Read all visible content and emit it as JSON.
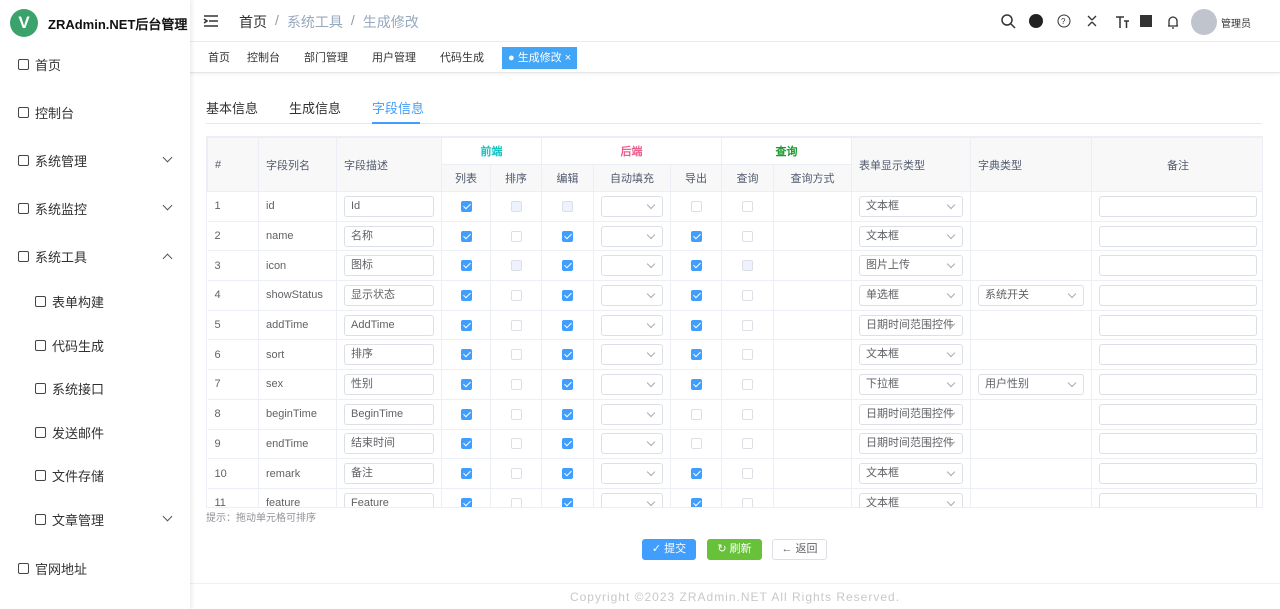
{
  "app": {
    "logo": "V",
    "title": "ZRAdmin.NET后台管理"
  },
  "sidebar": {
    "items": [
      "首页",
      "控制台",
      "系统管理",
      "系统监控",
      "系统工具"
    ],
    "children": [
      "表单构建",
      "代码生成",
      "系统接口",
      "发送邮件",
      "文件存储",
      "文章管理"
    ],
    "bottom": "官网地址"
  },
  "header": {
    "breadcrumb": [
      "首页",
      "系统工具",
      "生成修改"
    ],
    "user": "管理员"
  },
  "tags": {
    "items": [
      "首页",
      "控制台",
      "部门管理",
      "用户管理",
      "代码生成",
      "生成修改"
    ],
    "active": 5
  },
  "tabs": {
    "items": [
      "基本信息",
      "生成信息",
      "字段信息"
    ],
    "active": 2
  },
  "table": {
    "lead_columns": [
      "#",
      "字段列名",
      "字段描述"
    ],
    "groups": [
      {
        "label": "前端",
        "color": "#13c2c2",
        "columns": [
          "列表",
          "排序"
        ]
      },
      {
        "label": "后端",
        "color": "#eb5f8f",
        "columns": [
          "编辑",
          "自动填充",
          "导出"
        ]
      },
      {
        "label": "查询",
        "color": "#1a9a2f",
        "columns": [
          "查询",
          "查询方式"
        ]
      }
    ],
    "tail_columns": [
      "表单显示类型",
      "字典类型",
      "备注"
    ],
    "rows": [
      {
        "no": 1,
        "name": "id",
        "desc": "Id",
        "list": true,
        "sort": null,
        "edit": null,
        "export": false,
        "query": false,
        "html_type": "文本框",
        "dict": null
      },
      {
        "no": 2,
        "name": "name",
        "desc": "名称",
        "list": true,
        "sort": false,
        "edit": true,
        "export": true,
        "query": false,
        "html_type": "文本框",
        "dict": null
      },
      {
        "no": 3,
        "name": "icon",
        "desc": "图标",
        "list": true,
        "sort": null,
        "edit": true,
        "export": true,
        "query": null,
        "html_type": "图片上传",
        "dict": null
      },
      {
        "no": 4,
        "name": "showStatus",
        "desc": "显示状态",
        "list": true,
        "sort": false,
        "edit": true,
        "export": true,
        "query": false,
        "html_type": "单选框",
        "dict": "系统开关"
      },
      {
        "no": 5,
        "name": "addTime",
        "desc": "AddTime",
        "list": true,
        "sort": false,
        "edit": true,
        "export": true,
        "query": false,
        "html_type": "日期时间范围控件",
        "dict": null
      },
      {
        "no": 6,
        "name": "sort",
        "desc": "排序",
        "list": true,
        "sort": false,
        "edit": true,
        "export": true,
        "query": false,
        "html_type": "文本框",
        "dict": null
      },
      {
        "no": 7,
        "name": "sex",
        "desc": "性别",
        "list": true,
        "sort": false,
        "edit": true,
        "export": true,
        "query": false,
        "html_type": "下拉框",
        "dict": "用户性别"
      },
      {
        "no": 8,
        "name": "beginTime",
        "desc": "BeginTime",
        "list": true,
        "sort": false,
        "edit": true,
        "export": false,
        "query": false,
        "html_type": "日期时间范围控件",
        "dict": null
      },
      {
        "no": 9,
        "name": "endTime",
        "desc": "结束时间",
        "list": true,
        "sort": false,
        "edit": true,
        "export": false,
        "query": false,
        "html_type": "日期时间范围控件",
        "dict": null
      },
      {
        "no": 10,
        "name": "remark",
        "desc": "备注",
        "list": true,
        "sort": false,
        "edit": true,
        "export": true,
        "query": false,
        "html_type": "文本框",
        "dict": null
      },
      {
        "no": 11,
        "name": "feature",
        "desc": "Feature",
        "list": true,
        "sort": false,
        "edit": true,
        "export": true,
        "query": false,
        "html_type": "文本框",
        "dict": null
      }
    ]
  },
  "hint": "提示：拖动单元格可排序",
  "buttons": {
    "submit": "提交",
    "refresh": "刷新",
    "back": "返回"
  },
  "footer": "Copyright ©2023 ZRAdmin.NET All Rights Reserved."
}
